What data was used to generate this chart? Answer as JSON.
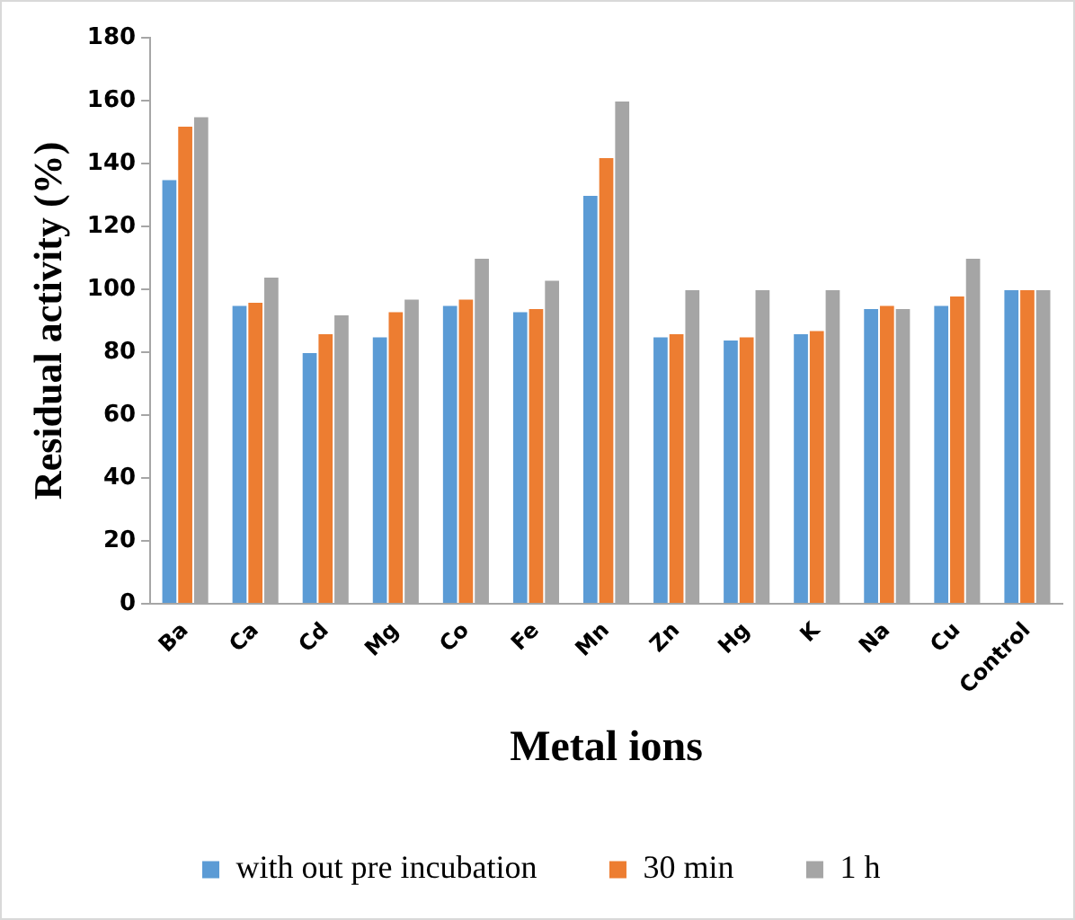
{
  "chart_data": {
    "type": "bar",
    "xlabel": "Metal ions",
    "ylabel": "Residual activity (%)",
    "categories": [
      "Ba",
      "Ca",
      "Cd",
      "Mg",
      "Co",
      "Fe",
      "Mn",
      "Zn",
      "Hg",
      "K",
      "Na",
      "Cu",
      "Control"
    ],
    "series": [
      {
        "name": "with out pre incubation",
        "color": "#5b9bd5",
        "values": [
          135,
          95,
          80,
          85,
          95,
          93,
          130,
          85,
          84,
          86,
          94,
          95,
          100
        ]
      },
      {
        "name": "30 min",
        "color": "#ed7d31",
        "values": [
          152,
          96,
          86,
          93,
          97,
          94,
          142,
          86,
          85,
          87,
          95,
          98,
          100
        ]
      },
      {
        "name": "1 h",
        "color": "#a5a5a5",
        "values": [
          155,
          104,
          92,
          97,
          110,
          103,
          160,
          100,
          100,
          100,
          94,
          110,
          100
        ]
      }
    ],
    "ylim": [
      0,
      180
    ],
    "yticks": [
      0,
      20,
      40,
      60,
      80,
      100,
      120,
      140,
      160,
      180
    ],
    "grid": false,
    "legend": "bottom"
  }
}
